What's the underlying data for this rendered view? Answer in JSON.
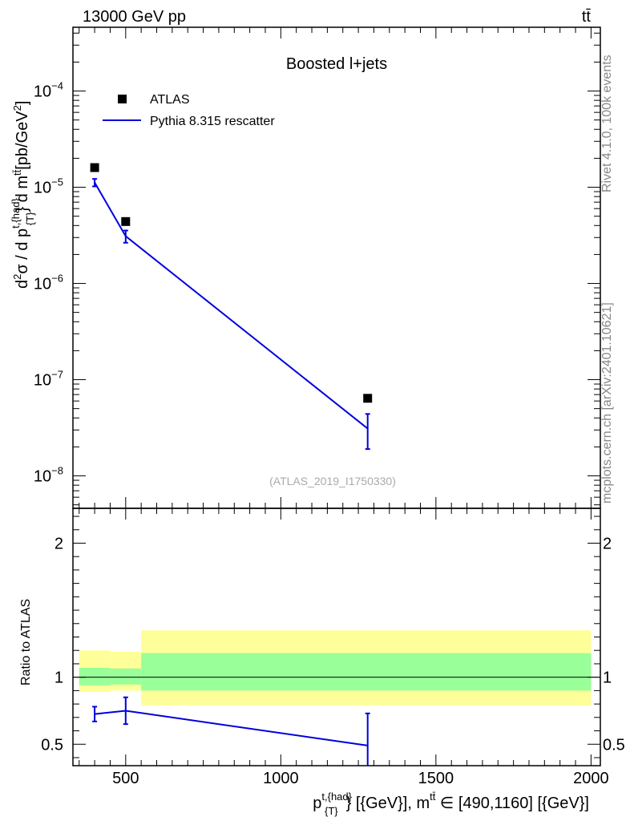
{
  "header": {
    "left": "13000 GeV pp",
    "right": "tt̄"
  },
  "side_labels": {
    "rivet": "Rivet 4.1.0,  100k events",
    "mcplots": "mcplots.cern.ch [arXiv:2401.10621]"
  },
  "colors": {
    "mc": "#0000dd",
    "data": "#000000",
    "band_outer": "#ffff99",
    "band_inner": "#99ff99"
  },
  "chart_data": [
    {
      "type": "scatter",
      "title": "Boosted l+jets",
      "analysis_id": "(ATLAS_2019_I1750330)",
      "ylabel": "d²σ / d p_{T}^{t,{had}} d m^{tt̄} [pb/GeV²]",
      "yscale": "log",
      "xlim": [
        330,
        2030
      ],
      "ylim": [
        4.6e-09,
        0.00046
      ],
      "y_ticks": [
        {
          "value": 0.0001,
          "mant": "10",
          "exp": "−4"
        },
        {
          "value": 1e-05,
          "mant": "10",
          "exp": "−5"
        },
        {
          "value": 1e-06,
          "mant": "10",
          "exp": "−6"
        },
        {
          "value": 1e-07,
          "mant": "10",
          "exp": "−7"
        },
        {
          "value": 1e-08,
          "mant": "10",
          "exp": "−8"
        }
      ],
      "legend": [
        "ATLAS",
        "Pythia 8.315 rescatter"
      ],
      "series": [
        {
          "name": "ATLAS",
          "x": [
            400,
            500,
            1280
          ],
          "y": [
            1.6e-05,
            4.4e-06,
            6.4e-08
          ]
        },
        {
          "name": "Pythia 8.315 rescatter",
          "x": [
            400,
            500,
            1280
          ],
          "y": [
            1.12e-05,
            3.1e-06,
            3.1e-08
          ],
          "err_low": [
            1.02e-05,
            2.65e-06,
            1.9e-08
          ],
          "err_high": [
            1.22e-05,
            3.55e-06,
            4.4e-08
          ]
        }
      ]
    },
    {
      "type": "scatter",
      "ylabel": "Ratio to ATLAS",
      "xlabel": "p_{T}^{t,{had}} [{GeV}], m^{tt̄} ∈ [490,1160] [{GeV}]",
      "xlim": [
        330,
        2030
      ],
      "ylim": [
        0.34,
        2.26
      ],
      "x_ticks": [
        500,
        1000,
        1500,
        2000
      ],
      "y_ticks": [
        0.5,
        1,
        2
      ],
      "bands": [
        {
          "x0": 350,
          "x1": 450,
          "inner": [
            0.94,
            1.07
          ],
          "outer": [
            0.89,
            1.2
          ]
        },
        {
          "x0": 450,
          "x1": 550,
          "inner": [
            0.945,
            1.065
          ],
          "outer": [
            0.9,
            1.19
          ]
        },
        {
          "x0": 550,
          "x1": 2000,
          "inner": [
            0.9,
            1.18
          ],
          "outer": [
            0.79,
            1.35
          ]
        }
      ],
      "series": [
        {
          "name": "Pythia 8.315 rescatter / ATLAS",
          "x": [
            400,
            500,
            1280
          ],
          "y": [
            0.725,
            0.75,
            0.49
          ],
          "err_low": [
            0.67,
            0.65,
            0.32
          ],
          "err_high": [
            0.78,
            0.85,
            0.73
          ]
        }
      ]
    }
  ]
}
